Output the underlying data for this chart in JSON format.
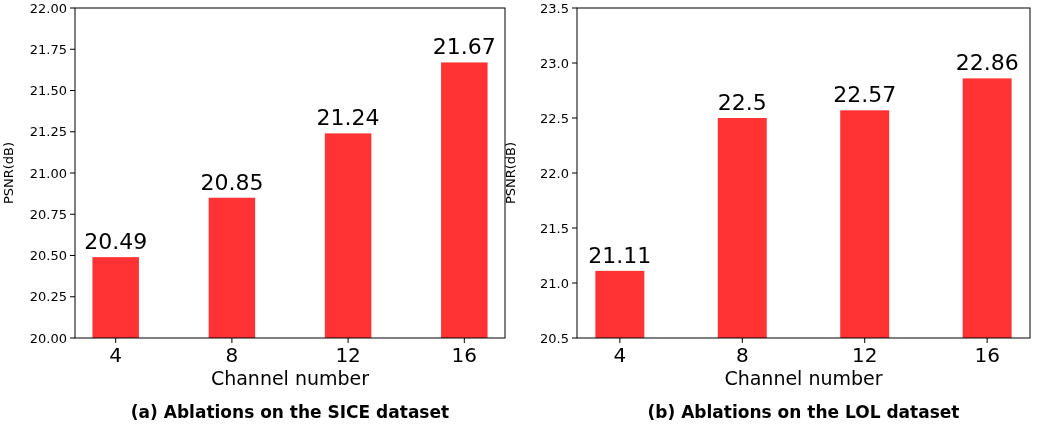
{
  "chart_data": [
    {
      "type": "bar",
      "title": "(a) Ablations on the SICE dataset",
      "xlabel": "Channel number",
      "ylabel": "PSNR(dB)",
      "categories": [
        "4",
        "8",
        "12",
        "16"
      ],
      "values": [
        20.49,
        20.85,
        21.24,
        21.67
      ],
      "color": "#ff3333",
      "data_labels": true,
      "ylim": [
        20,
        22
      ],
      "yticks": [
        {
          "value": 20,
          "label": "20.00"
        },
        {
          "value": 20.25,
          "label": "20.25"
        },
        {
          "value": 20.5,
          "label": "20.50"
        },
        {
          "value": 20.75,
          "label": "20.75"
        },
        {
          "value": 21,
          "label": "21.00"
        },
        {
          "value": 21.25,
          "label": "21.25"
        },
        {
          "value": 21.5,
          "label": "21.50"
        },
        {
          "value": 21.75,
          "label": "21.75"
        },
        {
          "value": 22,
          "label": "22.00"
        }
      ]
    },
    {
      "type": "bar",
      "title": "(b) Ablations on the LOL dataset",
      "xlabel": "Channel number",
      "ylabel": "PSNR(dB)",
      "categories": [
        "4",
        "8",
        "12",
        "16"
      ],
      "values": [
        21.11,
        22.5,
        22.57,
        22.86
      ],
      "color": "#ff3333",
      "data_labels": true,
      "ylim": [
        20.5,
        23.5
      ],
      "yticks": [
        20.5,
        {
          "value": 21,
          "label": "21.0"
        },
        21.5,
        {
          "value": 22,
          "label": "22.0"
        },
        22.5,
        {
          "value": 23,
          "label": "23.0"
        },
        23.5
      ]
    }
  ]
}
